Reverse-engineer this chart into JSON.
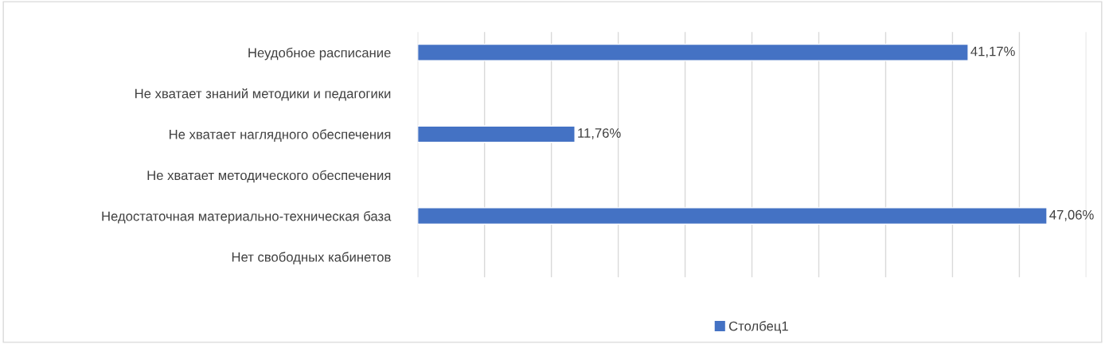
{
  "chart_data": {
    "type": "bar",
    "orientation": "horizontal",
    "categories": [
      "Неудобное расписание",
      "Не хватает знаний методики и педагогики",
      "Не хватает наглядного обеспечения",
      "Не хватает методического обеспечения",
      "Недостаточная материально-техническая база",
      "Нет свободных кабинетов"
    ],
    "series": [
      {
        "name": "Столбец1",
        "color": "#4472c4",
        "values": [
          41.17,
          null,
          11.76,
          null,
          47.06,
          null
        ],
        "value_labels": [
          "41,17%",
          null,
          "11,76%",
          null,
          "47,06%",
          null
        ]
      }
    ],
    "xlim": [
      0,
      50
    ],
    "xticks": [
      {
        "value": 0,
        "label": null
      },
      {
        "value": 5,
        "label": null
      },
      {
        "value": 10,
        "label": null
      },
      {
        "value": 15,
        "label": null
      },
      {
        "value": 20,
        "label": null
      },
      {
        "value": 25,
        "label": null
      },
      {
        "value": 30,
        "label": null
      },
      {
        "value": 35,
        "label": null
      },
      {
        "value": 40,
        "label": null
      },
      {
        "value": 45,
        "label": null
      },
      {
        "value": 50,
        "label": null
      }
    ],
    "tick_labels": "y",
    "grid": "x",
    "legend": "bottom"
  }
}
